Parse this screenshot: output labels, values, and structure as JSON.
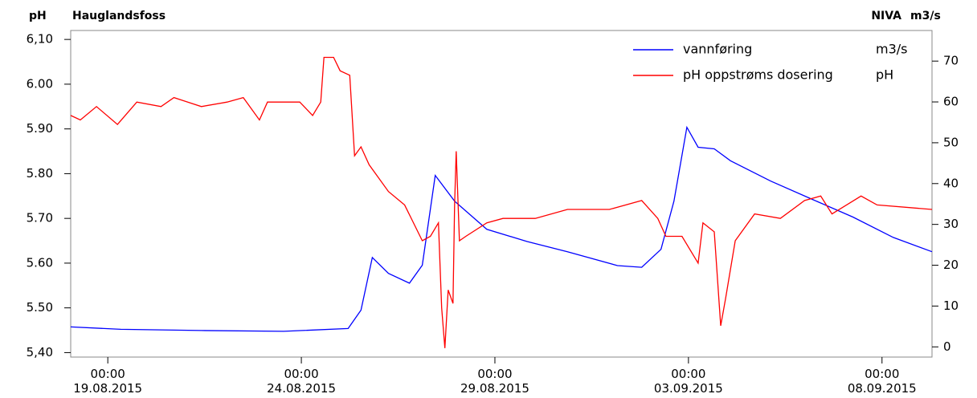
{
  "chart_data": {
    "type": "line",
    "left_header": [
      "pH",
      "Hauglandsfoss"
    ],
    "right_header": [
      "NIVA",
      "m3/s"
    ],
    "xlim": [
      "2015-08-18T01:00",
      "2015-09-09T07:00"
    ],
    "xticks": [
      {
        "value": "2015-08-19T00:00",
        "label": "00:00 19.08.2015"
      },
      {
        "value": "2015-08-24T00:00",
        "label": "00:00 24.08.2015"
      },
      {
        "value": "2015-08-29T00:00",
        "label": "00:00 29.08.2015"
      },
      {
        "value": "2015-09-03T00:00",
        "label": "00:00 03.09.2015"
      },
      {
        "value": "2015-09-08T00:00",
        "label": "00:00 08.09.2015"
      }
    ],
    "ylim": [
      5.39,
      6.12
    ],
    "yticks": [
      {
        "value": 5.4,
        "label": "5,40"
      },
      {
        "value": 5.5,
        "label": "5.50"
      },
      {
        "value": 5.6,
        "label": "5.60"
      },
      {
        "value": 5.7,
        "label": "5.70"
      },
      {
        "value": 5.8,
        "label": "5.80"
      },
      {
        "value": 5.9,
        "label": "5.90"
      },
      {
        "value": 6.0,
        "label": "6.00"
      },
      {
        "value": 6.1,
        "label": "6,10"
      }
    ],
    "y2lim": [
      -2.5,
      77.5
    ],
    "y2ticks": [
      0,
      10,
      20,
      30,
      40,
      50,
      60,
      70
    ],
    "series": [
      {
        "name": "vannføring",
        "unit": "m3/s",
        "color": "#0000ff",
        "axis": "y2",
        "x": [
          "2015-08-18T01:00",
          "2015-08-19T08:00",
          "2015-08-21T10:00",
          "2015-08-23T13:00",
          "2015-08-25T05:00",
          "2015-08-25T13:00",
          "2015-08-25T20:00",
          "2015-08-26T06:00",
          "2015-08-26T19:00",
          "2015-08-27T03:00",
          "2015-08-27T11:00",
          "2015-08-27T23:00",
          "2015-08-28T19:00",
          "2015-08-29T20:00",
          "2015-08-30T21:00",
          "2015-09-01T04:00",
          "2015-09-01T19:00",
          "2015-09-02T07:00",
          "2015-09-02T15:00",
          "2015-09-02T23:00",
          "2015-09-03T06:00",
          "2015-09-03T16:00",
          "2015-09-04T02:00",
          "2015-09-05T03:00",
          "2015-09-06T05:00",
          "2015-09-07T06:00",
          "2015-09-08T07:00",
          "2015-09-09T07:00"
        ],
        "values": [
          4.9,
          4.3,
          4.0,
          3.8,
          4.5,
          9,
          21.9,
          18,
          15.6,
          20,
          42,
          35.7,
          28.8,
          25.8,
          23.3,
          19.9,
          19.5,
          23.9,
          35.7,
          53.8,
          48.9,
          48.5,
          45.6,
          40.6,
          36.1,
          31.8,
          26.8,
          23.3
        ]
      },
      {
        "name": "pH oppstrøms dosering",
        "unit": "pH",
        "color": "#ff0000",
        "axis": "y",
        "x": [
          "2015-08-18T01:00",
          "2015-08-18T07:00",
          "2015-08-18T17:00",
          "2015-08-19T06:00",
          "2015-08-19T18:00",
          "2015-08-20T09:00",
          "2015-08-20T17:00",
          "2015-08-21T10:00",
          "2015-08-22T02:00",
          "2015-08-22T12:00",
          "2015-08-22T22:00",
          "2015-08-23T03:00",
          "2015-08-23T23:00",
          "2015-08-24T07:00",
          "2015-08-24T12:00",
          "2015-08-24T14:00",
          "2015-08-24T20:00",
          "2015-08-25T00:00",
          "2015-08-25T06:00",
          "2015-08-25T09:00",
          "2015-08-25T13:00",
          "2015-08-25T18:00",
          "2015-08-26T06:00",
          "2015-08-26T16:00",
          "2015-08-27T03:00",
          "2015-08-27T08:00",
          "2015-08-27T13:00",
          "2015-08-27T15:00",
          "2015-08-27T17:00",
          "2015-08-27T19:00",
          "2015-08-27T22:00",
          "2015-08-27T23:00",
          "2015-08-28T00:00",
          "2015-08-28T02:00",
          "2015-08-28T06:00",
          "2015-08-28T19:00",
          "2015-08-29T05:00",
          "2015-08-30T01:00",
          "2015-08-30T21:00",
          "2015-08-31T23:00",
          "2015-09-01T19:00",
          "2015-09-02T05:00",
          "2015-09-02T10:00",
          "2015-09-02T20:00",
          "2015-09-03T06:00",
          "2015-09-03T09:00",
          "2015-09-03T16:00",
          "2015-09-03T20:00",
          "2015-09-03T23:00",
          "2015-09-04T05:00",
          "2015-09-04T17:00",
          "2015-09-05T09:00",
          "2015-09-06T00:00",
          "2015-09-06T10:00",
          "2015-09-06T17:00",
          "2015-09-07T11:00",
          "2015-09-07T21:00",
          "2015-09-09T07:00"
        ],
        "values": [
          5.93,
          5.92,
          5.95,
          5.91,
          5.96,
          5.95,
          5.97,
          5.95,
          5.96,
          5.97,
          5.92,
          5.96,
          5.96,
          5.93,
          5.96,
          6.06,
          6.06,
          6.03,
          6.02,
          5.84,
          5.86,
          5.82,
          5.76,
          5.73,
          5.65,
          5.66,
          5.69,
          5.5,
          5.41,
          5.54,
          5.51,
          5.73,
          5.85,
          5.65,
          5.66,
          5.69,
          5.7,
          5.7,
          5.72,
          5.72,
          5.74,
          5.7,
          5.66,
          5.66,
          5.6,
          5.69,
          5.67,
          5.46,
          5.52,
          5.65,
          5.71,
          5.7,
          5.74,
          5.75,
          5.71,
          5.75,
          5.73,
          5.72
        ]
      }
    ]
  }
}
